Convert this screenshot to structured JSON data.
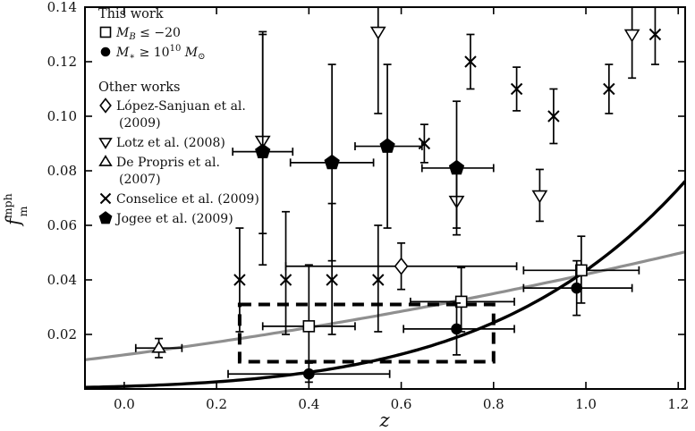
{
  "chart_data": {
    "type": "scatter",
    "title": "",
    "xlabel": "z",
    "ylabel": "f_m^mph",
    "ylabel_parts": {
      "base": "f",
      "sup": "mph",
      "sub": "m"
    },
    "xlim": [
      -0.085,
      1.215
    ],
    "ylim": [
      0,
      0.14
    ],
    "grid": false,
    "xticks": [
      0.0,
      0.2,
      0.4,
      0.6,
      0.8,
      1.0,
      1.2
    ],
    "xtick_labels": [
      "0.0",
      "0.2",
      "0.4",
      "0.6",
      "0.8",
      "1.0",
      "1.2"
    ],
    "yticks": [
      0.02,
      0.04,
      0.06,
      0.08,
      0.1,
      0.12,
      0.14
    ],
    "ytick_labels": [
      "0.02",
      "0.04",
      "0.06",
      "0.08",
      "0.10",
      "0.12",
      "0.14"
    ],
    "fits": [
      {
        "name": "power-law fit to M_B sample",
        "color": "#8f8f8f",
        "width": 3.2,
        "f0": 0.0125,
        "m": 1.75,
        "zmin": -0.085,
        "zmax": 1.215
      },
      {
        "name": "power-law fit to M_star sample",
        "color": "#000000",
        "width": 3.4,
        "f0": 0.00096,
        "m": 5.5,
        "zmin": -0.085,
        "zmax": 1.215
      }
    ],
    "highlight_box": {
      "x": [
        0.25,
        0.8
      ],
      "y": [
        0.01,
        0.031
      ],
      "style": "dashed"
    },
    "series": [
      {
        "key": "conselice-2009",
        "name": "Conselice et al. (2009)",
        "marker": "x",
        "fill": "open",
        "size": 6,
        "points": [
          {
            "x": 0.25,
            "y": 0.04,
            "ye": [
              0.021,
              0.059
            ]
          },
          {
            "x": 0.35,
            "y": 0.04,
            "ye": [
              0.02,
              0.065
            ]
          },
          {
            "x": 0.45,
            "y": 0.04,
            "ye": [
              0.02,
              0.068
            ]
          },
          {
            "x": 0.55,
            "y": 0.04,
            "ye": [
              0.021,
              0.06
            ]
          },
          {
            "x": 0.65,
            "y": 0.09,
            "ye": [
              0.083,
              0.097
            ]
          },
          {
            "x": 0.75,
            "y": 0.12,
            "ye": [
              0.11,
              0.13
            ]
          },
          {
            "x": 0.85,
            "y": 0.11,
            "ye": [
              0.102,
              0.118
            ]
          },
          {
            "x": 0.93,
            "y": 0.1,
            "ye": [
              0.09,
              0.11
            ]
          },
          {
            "x": 1.05,
            "y": 0.11,
            "ye": [
              0.101,
              0.119
            ]
          },
          {
            "x": 1.15,
            "y": 0.13,
            "ye": [
              0.119,
              0.141
            ]
          }
        ]
      },
      {
        "key": "lotz-2008",
        "name": "Lotz et al. (2008)",
        "marker": "triangle-down",
        "fill": "open",
        "size": 6.5,
        "points": [
          {
            "x": 0.3,
            "y": 0.091,
            "ye": [
              0.057,
              0.131
            ]
          },
          {
            "x": 0.55,
            "y": 0.131,
            "ye": [
              0.101,
              0.142
            ]
          },
          {
            "x": 0.72,
            "y": 0.069,
            "ye": [
              0.059,
              0.079
            ]
          },
          {
            "x": 0.9,
            "y": 0.071,
            "ye": [
              0.0615,
              0.0805
            ]
          },
          {
            "x": 1.1,
            "y": 0.13,
            "ye": [
              0.114,
              0.142
            ]
          }
        ]
      },
      {
        "key": "jogee-2009",
        "name": "Jogee et al. (2009)",
        "marker": "pentagon",
        "fill": "filled",
        "size": 6.5,
        "points": [
          {
            "x": 0.3,
            "y": 0.087,
            "xe": [
              0.235,
              0.365
            ],
            "ye": [
              0.0455,
              0.13
            ]
          },
          {
            "x": 0.45,
            "y": 0.083,
            "xe": [
              0.36,
              0.54
            ],
            "ye": [
              0.047,
              0.119
            ]
          },
          {
            "x": 0.57,
            "y": 0.089,
            "xe": [
              0.5,
              0.645
            ],
            "ye": [
              0.059,
              0.119
            ]
          },
          {
            "x": 0.72,
            "y": 0.081,
            "xe": [
              0.645,
              0.8
            ],
            "ye": [
              0.0565,
              0.1055
            ]
          }
        ]
      },
      {
        "key": "depropris-2007",
        "name": "De Propris et al. (2007)",
        "marker": "triangle-up",
        "fill": "open",
        "size": 6,
        "points": [
          {
            "x": 0.075,
            "y": 0.015,
            "xe": [
              0.025,
              0.125
            ],
            "ye": [
              0.0115,
              0.0185
            ]
          }
        ]
      },
      {
        "key": "lopez-sanjuan-2009",
        "name": "López-Sanjuan et al. (2009)",
        "marker": "diamond",
        "fill": "open",
        "size": 6.5,
        "points": [
          {
            "x": 0.6,
            "y": 0.045,
            "xe": [
              0.35,
              0.85
            ],
            "ye": [
              0.0365,
              0.0535
            ]
          }
        ]
      },
      {
        "key": "thiswork-mb",
        "name": "This work, M_B <= -20",
        "marker": "square",
        "fill": "open",
        "size": 6,
        "points": [
          {
            "x": 0.4,
            "y": 0.023,
            "xe": [
              0.3,
              0.5
            ],
            "ye": [
              0.01,
              0.0455
            ]
          },
          {
            "x": 0.73,
            "y": 0.032,
            "xe": [
              0.62,
              0.845
            ],
            "ye": [
              0.021,
              0.0445
            ]
          },
          {
            "x": 0.99,
            "y": 0.0435,
            "xe": [
              0.865,
              1.115
            ],
            "ye": [
              0.0315,
              0.056
            ]
          }
        ]
      },
      {
        "key": "thiswork-mstar",
        "name": "This work, M_star >= 10^10 Msun",
        "marker": "circle",
        "fill": "filled",
        "size": 5.5,
        "points": [
          {
            "x": 0.4,
            "y": 0.0055,
            "xe": [
              0.225,
              0.575
            ],
            "ye": [
              0.0025,
              0.0095
            ]
          },
          {
            "x": 0.72,
            "y": 0.022,
            "xe": [
              0.605,
              0.845
            ],
            "ye": [
              0.0125,
              0.0315
            ]
          },
          {
            "x": 0.98,
            "y": 0.037,
            "xe": [
              0.865,
              1.1
            ],
            "ye": [
              0.027,
              0.047
            ]
          }
        ]
      }
    ],
    "legend": {
      "groups": [
        {
          "title": "This work",
          "items": [
            {
              "marker": "square",
              "fill": "open",
              "msize": 5.5,
              "lines": [
                [
                  [
                    "M",
                    "i"
                  ],
                  [
                    "B",
                    "isub"
                  ],
                  [
                    " ≤ −20",
                    ""
                  ]
                ]
              ]
            },
            {
              "marker": "circle",
              "fill": "filled",
              "msize": 4.5,
              "lines": [
                [
                  [
                    "M",
                    "i"
                  ],
                  [
                    "∗",
                    "sub"
                  ],
                  [
                    " ≥ 10",
                    ""
                  ],
                  [
                    "10",
                    "sup"
                  ],
                  [
                    " M",
                    "i"
                  ],
                  [
                    "⊙",
                    "sub"
                  ]
                ]
              ]
            }
          ]
        },
        {
          "title": "Other works",
          "items": [
            {
              "marker": "diamond",
              "fill": "open",
              "msize": 5.5,
              "lines": [
                [
                  [
                    "López-Sanjuan et al.",
                    ""
                  ]
                ],
                [
                  [
                    "(2009)",
                    ""
                  ]
                ]
              ]
            },
            {
              "marker": "triangle-down",
              "fill": "open",
              "msize": 5.5,
              "lines": [
                [
                  [
                    "Lotz et al. (2008)",
                    ""
                  ]
                ]
              ]
            },
            {
              "marker": "triangle-up",
              "fill": "open",
              "msize": 5.5,
              "lines": [
                [
                  [
                    "De Propris et al.",
                    ""
                  ]
                ],
                [
                  [
                    "(2007)",
                    ""
                  ]
                ]
              ]
            },
            {
              "marker": "x",
              "fill": "open",
              "msize": 5.5,
              "lines": [
                [
                  [
                    "Conselice et al. (2009)",
                    ""
                  ]
                ]
              ]
            },
            {
              "marker": "pentagon",
              "fill": "filled",
              "msize": 5.5,
              "lines": [
                [
                  [
                    "Jogee et al. (2009)",
                    ""
                  ]
                ]
              ]
            }
          ]
        }
      ]
    }
  }
}
